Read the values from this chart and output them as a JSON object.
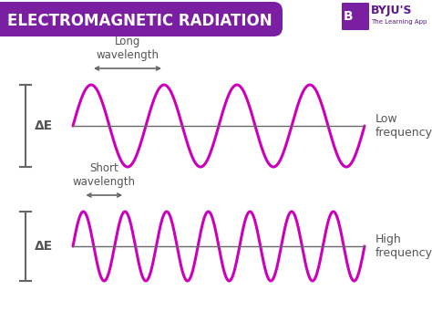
{
  "title": "ELECTROMAGNETIC RADIATION",
  "title_bg_color": "#7b1fa2",
  "title_text_color": "#ffffff",
  "bg_color": "#ffffff",
  "wave_color": "#cc00bb",
  "axis_color": "#666666",
  "text_color": "#555555",
  "arrow_color": "#666666",
  "wave1_cycles": 4,
  "wave2_cycles": 7,
  "label_long_wavelength": "Long\nwavelength",
  "label_short_wavelength": "Short\nwavelength",
  "label_low_frequency": "Low\nfrequency",
  "label_high_frequency": "High\nfrequency",
  "label_delta_e": "ΔE"
}
